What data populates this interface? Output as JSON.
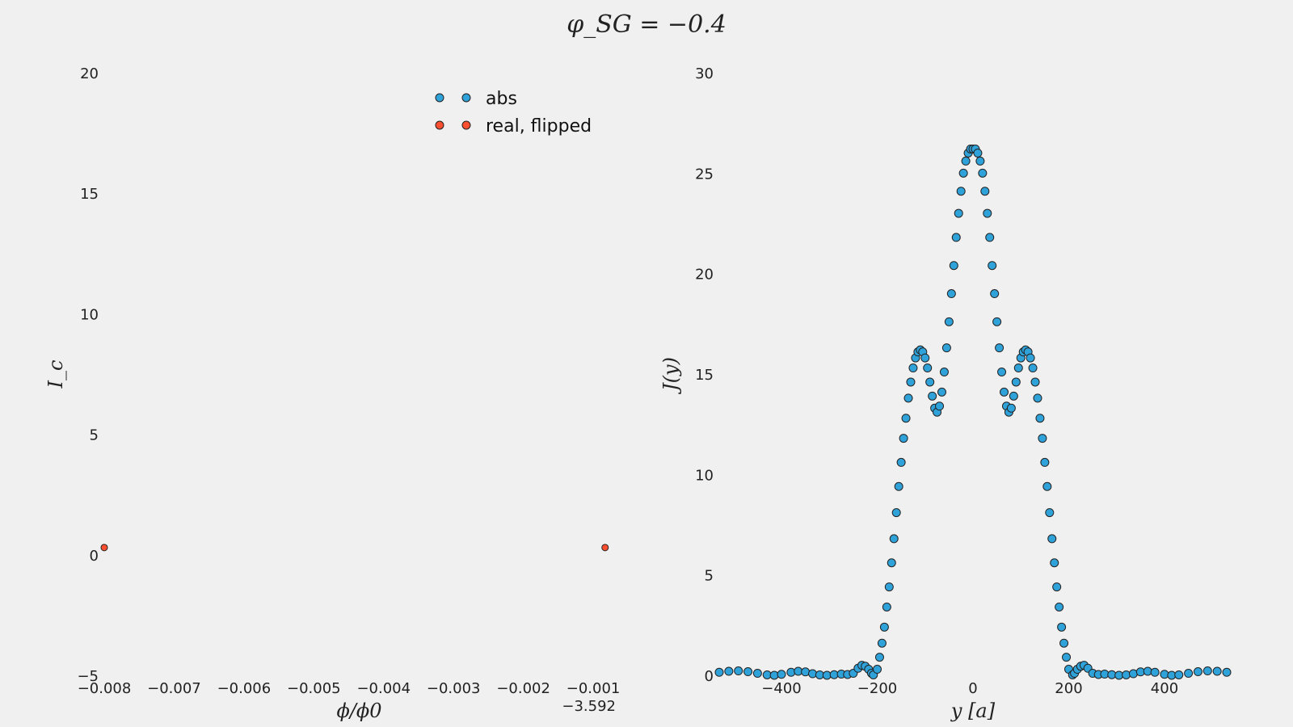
{
  "figure": {
    "suptitle": "φ_SG = −0.4"
  },
  "colors": {
    "background": "#f0f0f0",
    "abs": "#30a2da",
    "real": "#fc4f30",
    "edge": "#222222"
  },
  "chart_data": [
    {
      "type": "scatter",
      "xlabel": "ϕ/ϕ0",
      "ylabel": "I_c",
      "xlim": [
        -0.008,
        -0.0007
      ],
      "ylim": [
        -5,
        20
      ],
      "x_offset_label": "−3.592",
      "xticks": [
        "−0.008",
        "−0.007",
        "−0.006",
        "−0.005",
        "−0.004",
        "−0.003",
        "−0.002",
        "−0.001"
      ],
      "xtick_values": [
        -0.008,
        -0.007,
        -0.006,
        -0.005,
        -0.004,
        -0.003,
        -0.002,
        -0.001
      ],
      "yticks": [
        "−5",
        "0",
        "5",
        "10",
        "15",
        "20"
      ],
      "ytick_values": [
        -5,
        0,
        5,
        10,
        15,
        20
      ],
      "grid": false,
      "legend": {
        "placement": "top-center",
        "entries": [
          {
            "label": "abs",
            "color": "#30a2da"
          },
          {
            "label": "real, flipped",
            "color": "#fc4f30"
          }
        ]
      },
      "series": [
        {
          "name": "abs",
          "color": "#30a2da",
          "points": []
        },
        {
          "name": "real, flipped",
          "color": "#fc4f30",
          "points": [
            [
              -0.008,
              0.3
            ],
            [
              -0.00083,
              0.3
            ]
          ]
        }
      ]
    },
    {
      "type": "scatter",
      "xlabel": "y [a]",
      "ylabel": "J(y)",
      "xlim": [
        -530,
        530
      ],
      "ylim": [
        0,
        30
      ],
      "xticks": [
        "−400",
        "−200",
        "0",
        "200",
        "400"
      ],
      "xtick_values": [
        -400,
        -200,
        0,
        200,
        400
      ],
      "yticks": [
        "0",
        "5",
        "10",
        "15",
        "20",
        "25",
        "30"
      ],
      "ytick_values": [
        0,
        5,
        10,
        15,
        20,
        25,
        30
      ],
      "grid": false,
      "series": [
        {
          "name": "",
          "color": "#30a2da",
          "points": [
            [
              -530,
              0.15
            ],
            [
              -510,
              0.2
            ],
            [
              -490,
              0.22
            ],
            [
              -470,
              0.18
            ],
            [
              -450,
              0.1
            ],
            [
              -430,
              0.02
            ],
            [
              -415,
              0.0
            ],
            [
              -400,
              0.05
            ],
            [
              -380,
              0.15
            ],
            [
              -365,
              0.2
            ],
            [
              -350,
              0.17
            ],
            [
              -335,
              0.08
            ],
            [
              -320,
              0.02
            ],
            [
              -305,
              0.0
            ],
            [
              -290,
              0.03
            ],
            [
              -275,
              0.06
            ],
            [
              -262,
              0.04
            ],
            [
              -250,
              0.1
            ],
            [
              -240,
              0.35
            ],
            [
              -232,
              0.5
            ],
            [
              -225,
              0.45
            ],
            [
              -218,
              0.3
            ],
            [
              -212,
              0.1
            ],
            [
              -208,
              0.02
            ],
            [
              -200,
              0.3
            ],
            [
              -195,
              0.9
            ],
            [
              -190,
              1.6
            ],
            [
              -185,
              2.4
            ],
            [
              -180,
              3.4
            ],
            [
              -175,
              4.4
            ],
            [
              -170,
              5.6
            ],
            [
              -165,
              6.8
            ],
            [
              -160,
              8.1
            ],
            [
              -155,
              9.4
            ],
            [
              -150,
              10.6
            ],
            [
              -145,
              11.8
            ],
            [
              -140,
              12.8
            ],
            [
              -135,
              13.8
            ],
            [
              -130,
              14.6
            ],
            [
              -125,
              15.3
            ],
            [
              -120,
              15.8
            ],
            [
              -115,
              16.1
            ],
            [
              -110,
              16.2
            ],
            [
              -105,
              16.1
            ],
            [
              -100,
              15.8
            ],
            [
              -95,
              15.3
            ],
            [
              -90,
              14.6
            ],
            [
              -85,
              13.9
            ],
            [
              -80,
              13.3
            ],
            [
              -75,
              13.1
            ],
            [
              -70,
              13.4
            ],
            [
              -65,
              14.1
            ],
            [
              -60,
              15.1
            ],
            [
              -55,
              16.3
            ],
            [
              -50,
              17.6
            ],
            [
              -45,
              19.0
            ],
            [
              -40,
              20.4
            ],
            [
              -35,
              21.8
            ],
            [
              -30,
              23.0
            ],
            [
              -25,
              24.1
            ],
            [
              -20,
              25.0
            ],
            [
              -15,
              25.6
            ],
            [
              -10,
              26.0
            ],
            [
              -5,
              26.2
            ],
            [
              0,
              26.2
            ],
            [
              5,
              26.2
            ],
            [
              10,
              26.0
            ],
            [
              15,
              25.6
            ],
            [
              20,
              25.0
            ],
            [
              25,
              24.1
            ],
            [
              30,
              23.0
            ],
            [
              35,
              21.8
            ],
            [
              40,
              20.4
            ],
            [
              45,
              19.0
            ],
            [
              50,
              17.6
            ],
            [
              55,
              16.3
            ],
            [
              60,
              15.1
            ],
            [
              65,
              14.1
            ],
            [
              70,
              13.4
            ],
            [
              75,
              13.1
            ],
            [
              80,
              13.3
            ],
            [
              85,
              13.9
            ],
            [
              90,
              14.6
            ],
            [
              95,
              15.3
            ],
            [
              100,
              15.8
            ],
            [
              105,
              16.1
            ],
            [
              110,
              16.2
            ],
            [
              115,
              16.1
            ],
            [
              120,
              15.8
            ],
            [
              125,
              15.3
            ],
            [
              130,
              14.6
            ],
            [
              135,
              13.8
            ],
            [
              140,
              12.8
            ],
            [
              145,
              11.8
            ],
            [
              150,
              10.6
            ],
            [
              155,
              9.4
            ],
            [
              160,
              8.1
            ],
            [
              165,
              6.8
            ],
            [
              170,
              5.6
            ],
            [
              175,
              4.4
            ],
            [
              180,
              3.4
            ],
            [
              185,
              2.4
            ],
            [
              190,
              1.6
            ],
            [
              195,
              0.9
            ],
            [
              200,
              0.3
            ],
            [
              208,
              0.02
            ],
            [
              212,
              0.1
            ],
            [
              218,
              0.3
            ],
            [
              225,
              0.45
            ],
            [
              232,
              0.5
            ],
            [
              240,
              0.35
            ],
            [
              250,
              0.1
            ],
            [
              262,
              0.04
            ],
            [
              275,
              0.06
            ],
            [
              290,
              0.03
            ],
            [
              305,
              0.0
            ],
            [
              320,
              0.02
            ],
            [
              335,
              0.08
            ],
            [
              350,
              0.17
            ],
            [
              365,
              0.2
            ],
            [
              380,
              0.15
            ],
            [
              400,
              0.05
            ],
            [
              415,
              0.0
            ],
            [
              430,
              0.02
            ],
            [
              450,
              0.1
            ],
            [
              470,
              0.18
            ],
            [
              490,
              0.22
            ],
            [
              510,
              0.2
            ],
            [
              530,
              0.15
            ]
          ]
        }
      ]
    }
  ]
}
